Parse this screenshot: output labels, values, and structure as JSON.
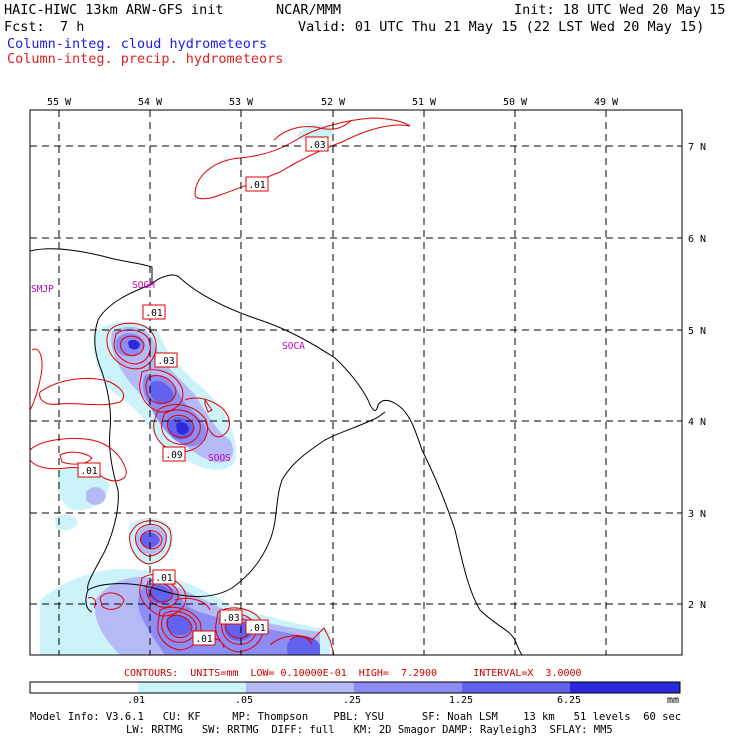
{
  "header": {
    "model_title": "HAIC-HIWC 13km ARW-GFS init",
    "org": "NCAR/MMM",
    "init": "Init: 18 UTC Wed 20 May 15",
    "fcst_label": "Fcst:",
    "fcst_value": "7 h",
    "valid": "Valid: 01 UTC Thu 21 May 15 (22 LST Wed 20 May 15)",
    "field_cloud": "Column-integ. cloud hydrometeors",
    "field_precip": "Column-integ. precip. hydrometeors"
  },
  "colors": {
    "cloud_label": "#1c1cdc",
    "precip_label": "#e02020",
    "contour": "#e00000",
    "station": "#c000c0",
    "fill_1": "#ccf2fa",
    "fill_2": "#b4baf6",
    "fill_3": "#8c8cf4",
    "fill_4": "#6262ee",
    "fill_5": "#2a2adc"
  },
  "map": {
    "lon_labels": [
      "55 W",
      "54 W",
      "53 W",
      "52 W",
      "51 W",
      "50 W",
      "49 W"
    ],
    "lat_labels": [
      "7 N",
      "6 N",
      "5 N",
      "4 N",
      "3 N",
      "2 N"
    ],
    "stations": [
      "SMJP",
      "SOGM",
      "SOCA",
      "SOOS"
    ],
    "contour_labels": [
      ".03",
      ".01",
      ".01",
      ".03",
      ".01",
      ".09",
      ".01",
      ".01",
      ".03",
      ".01"
    ]
  },
  "colorbar": {
    "caption": "CONTOURS:  UNITS=mm  LOW= 0.10000E-01  HIGH=  7.2900      INTERVAL=X  3.0000",
    "ticks": [
      ".01",
      ".05",
      ".25",
      "1.25",
      "6.25"
    ],
    "units": "mm"
  },
  "model_info": {
    "line1": "Model Info: V3.6.1   CU: KF     MP: Thompson    PBL: YSU      SF: Noah LSM    13 km   51 levels  60 sec",
    "line2": "LW: RRTMG   SW: RRTMG  DIFF: full   KM: 2D Smagor DAMP: Rayleigh3  SFLAY: MM5"
  }
}
